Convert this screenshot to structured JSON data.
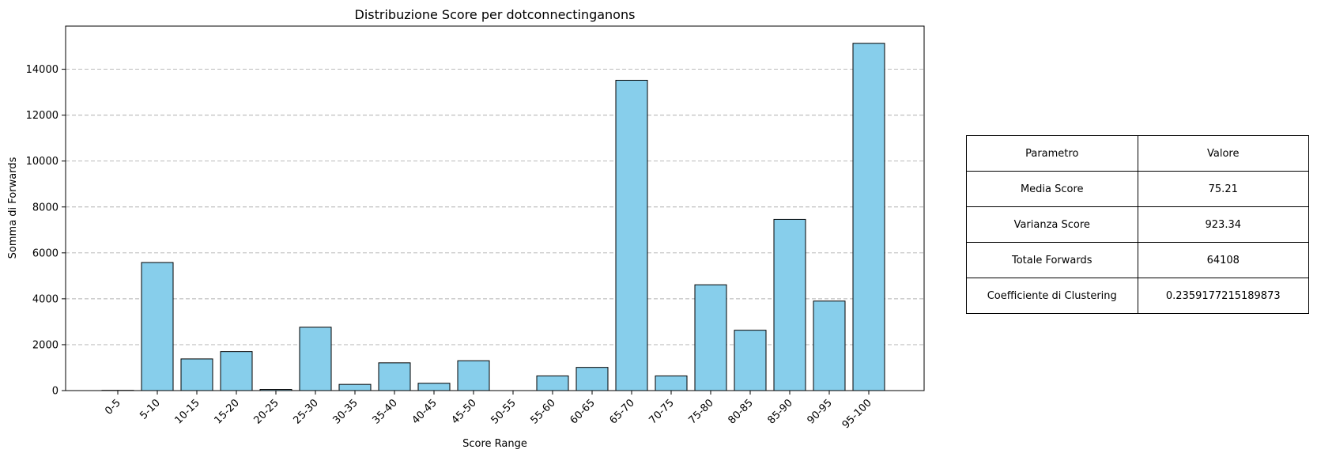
{
  "chart_data": {
    "type": "bar",
    "title": "Distribuzione Score per dotconnectinganons",
    "xlabel": "Score Range",
    "ylabel": "Somma di Forwards",
    "categories": [
      "0-5",
      "5-10",
      "10-15",
      "15-20",
      "20-25",
      "25-30",
      "30-35",
      "35-40",
      "40-45",
      "45-50",
      "50-55",
      "55-60",
      "60-65",
      "65-70",
      "70-75",
      "75-80",
      "80-85",
      "85-90",
      "90-95",
      "95-100"
    ],
    "values": [
      10,
      5580,
      1380,
      1700,
      50,
      2760,
      270,
      1210,
      320,
      1300,
      0,
      640,
      1010,
      13520,
      640,
      4610,
      2630,
      7460,
      3900,
      15130
    ],
    "ylim": [
      0,
      15880
    ],
    "yticks": [
      0,
      2000,
      4000,
      6000,
      8000,
      10000,
      12000,
      14000
    ],
    "grid": "y-dashed",
    "bar_color": "#87ceeb",
    "edge_color": "#000000"
  },
  "table": {
    "header": [
      "Parametro",
      "Valore"
    ],
    "rows": [
      [
        "Media Score",
        "75.21"
      ],
      [
        "Varianza Score",
        "923.34"
      ],
      [
        "Totale Forwards",
        "64108"
      ],
      [
        "Coefficiente di Clustering",
        "0.2359177215189873"
      ]
    ]
  }
}
